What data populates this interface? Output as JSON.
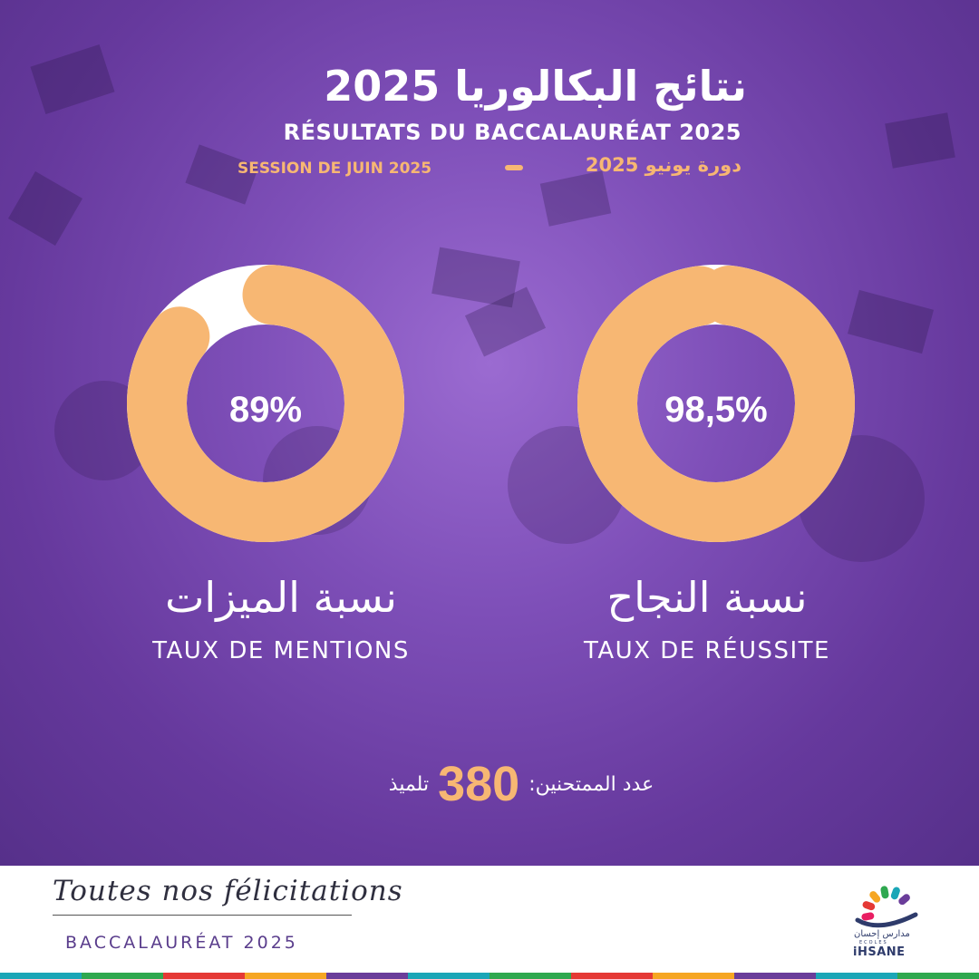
{
  "header": {
    "title_ar": "نتائج البكالوريا 2025",
    "title_fr": "RÉSULTATS DU BACCALAURÉAT 2025",
    "session_fr": "SESSION DE JUIN 2025",
    "session_ar": "دورة يونيو 2025"
  },
  "stats": [
    {
      "value_label": "89%",
      "value": 89,
      "label_ar": "نسبة الميزات",
      "label_fr": "TAUX DE MENTIONS"
    },
    {
      "value_label": "98,5%",
      "value": 98.5,
      "label_ar": "نسبة النجاح",
      "label_fr": "TAUX DE RÉUSSITE"
    }
  ],
  "candidates": {
    "label_ar": "عدد الممتحنين:",
    "count": "380",
    "unit_ar": "تلميذ"
  },
  "footer": {
    "script_text": "Toutes nos félicitations",
    "subtitle": "BACCALAURÉAT 2025",
    "logo_ar": "مدارس إحسان",
    "logo_small": "ECOLES",
    "logo_name": "iHSANE"
  },
  "colors": {
    "accent": "#f7b773",
    "ring_remainder": "#ffffff",
    "background": "#7e4fb8",
    "text": "#ffffff",
    "footer_text": "#5a3d8c",
    "stripe": [
      "#1aa6b7",
      "#2fa84f",
      "#e53935",
      "#f6a623",
      "#6a3d9a",
      "#1aa6b7",
      "#2fa84f",
      "#e53935",
      "#f6a623",
      "#6a3d9a",
      "#1aa6b7",
      "#2fa84f"
    ]
  }
}
